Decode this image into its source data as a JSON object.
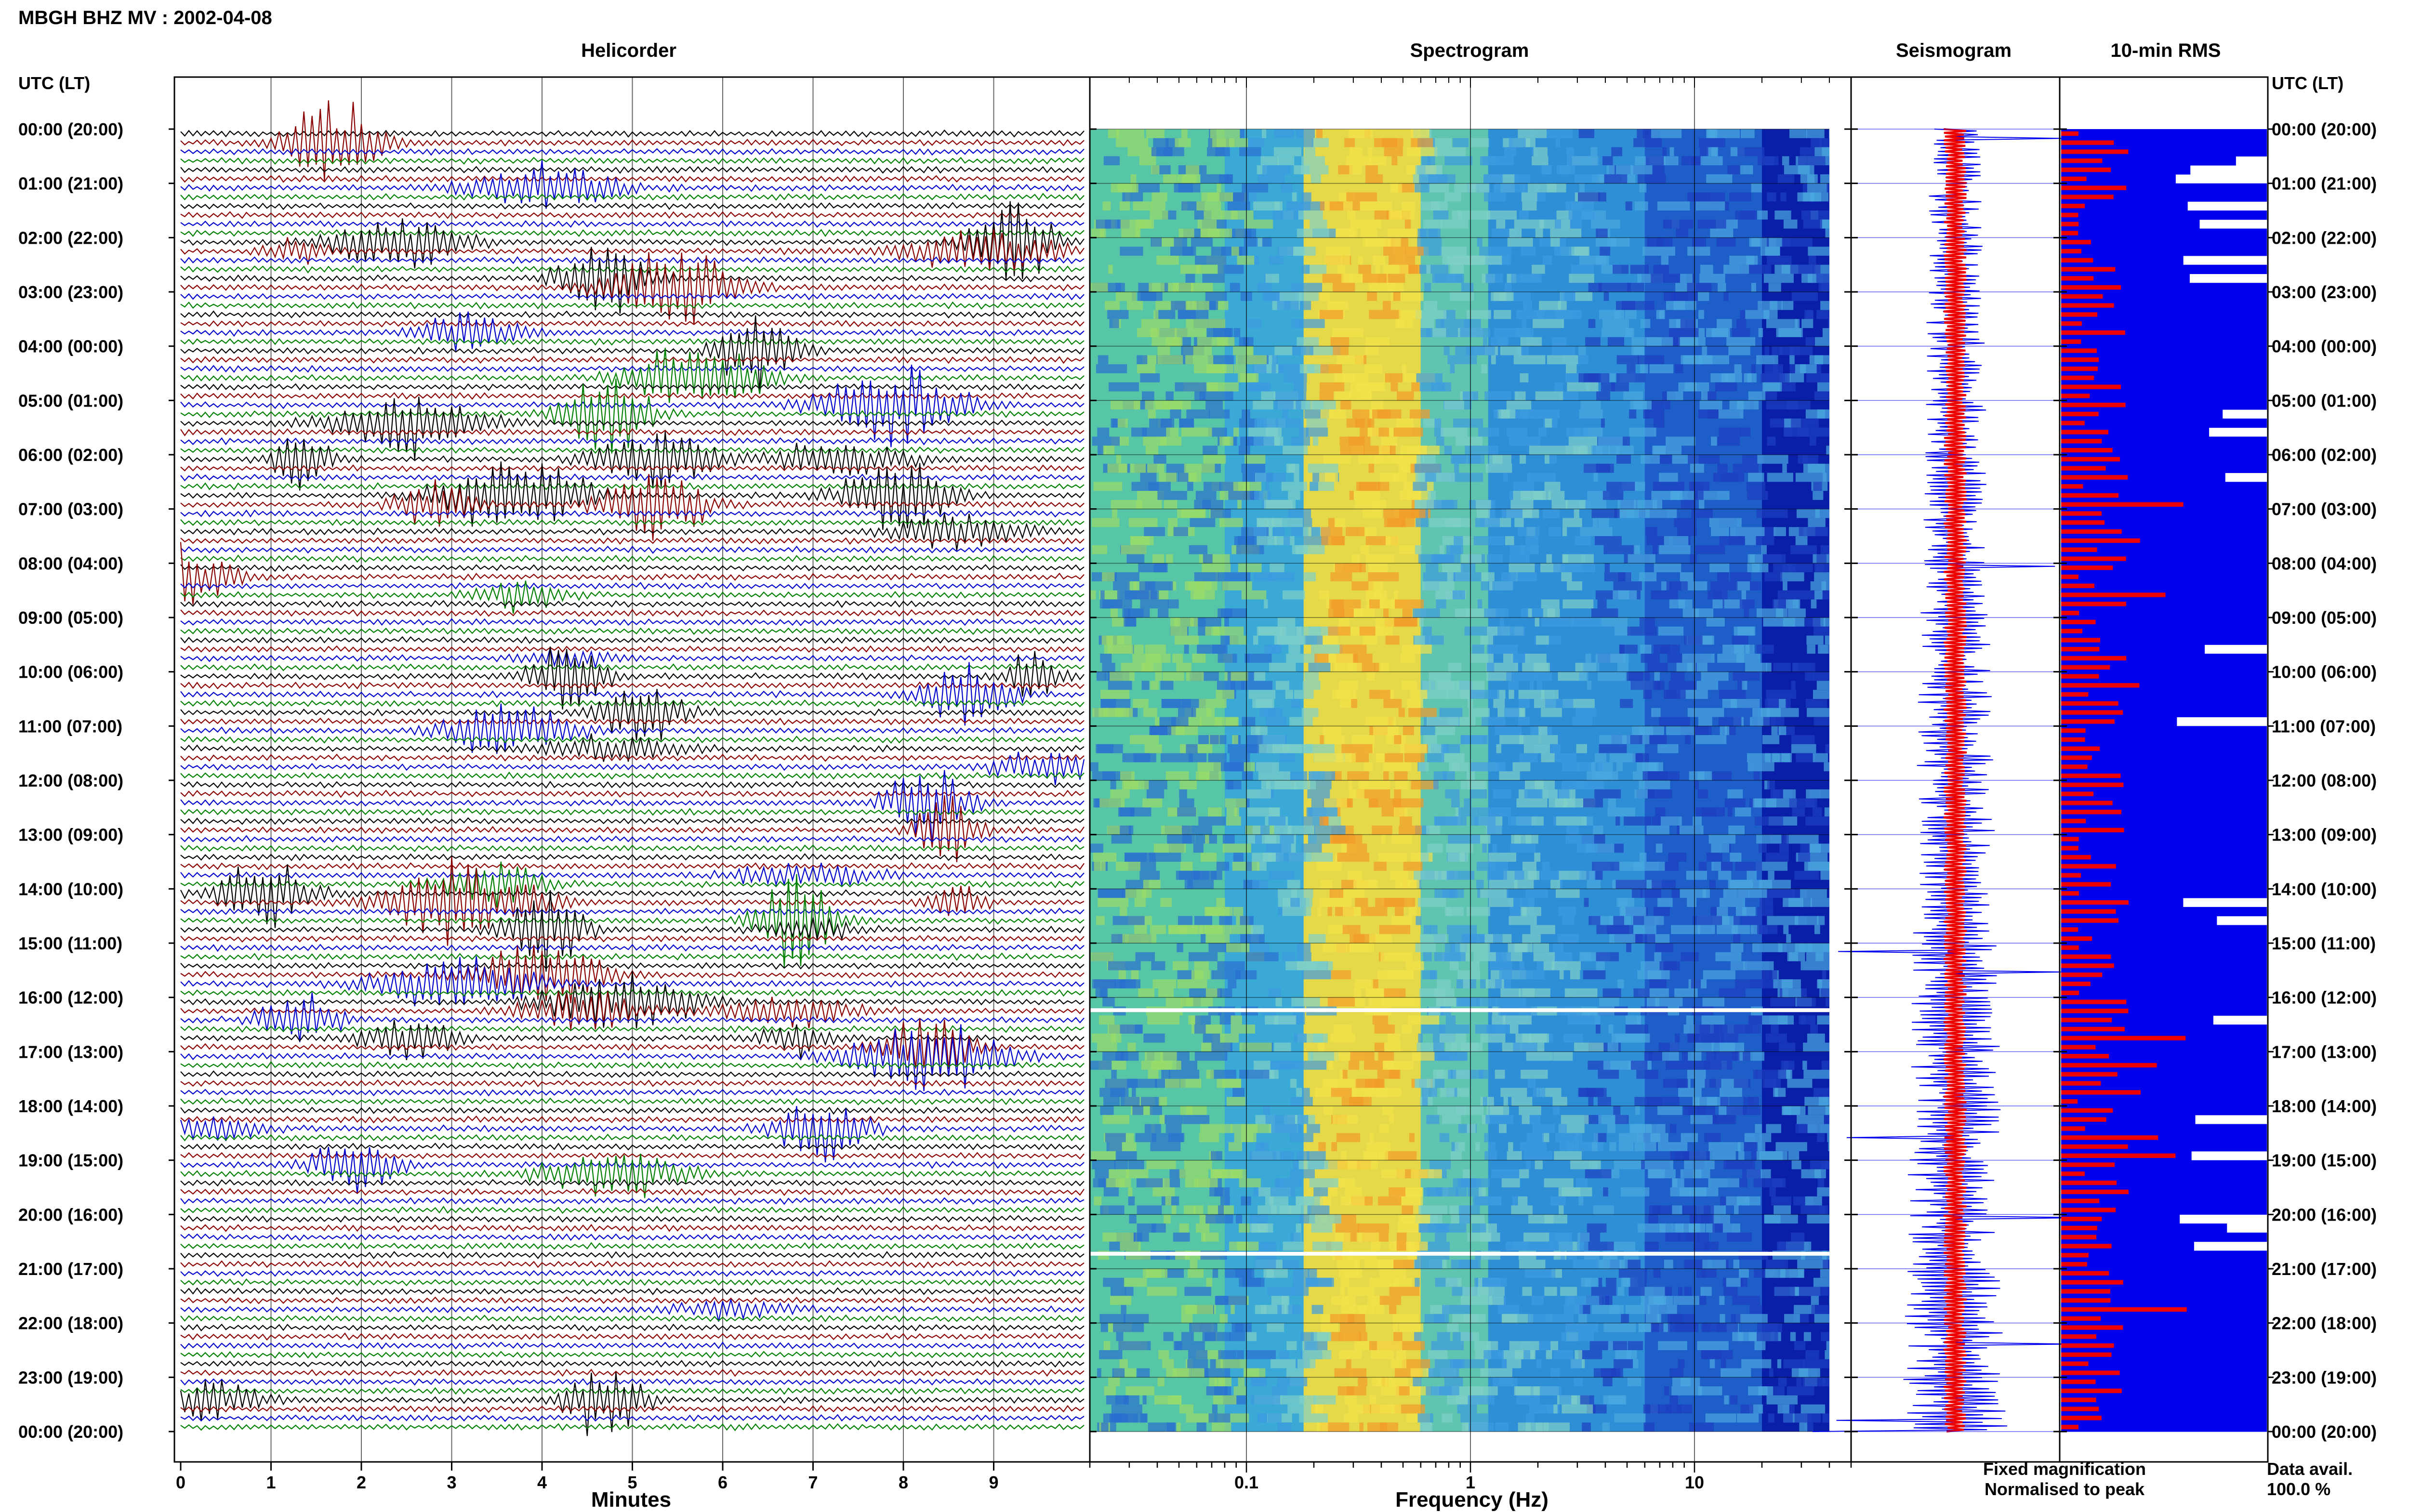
{
  "header": {
    "title": "MBGH BHZ MV : 2002-04-08"
  },
  "panels": {
    "helicorder": "Helicorder",
    "spectrogram": "Spectrogram",
    "seismogram": "Seismogram",
    "rms": "10-min RMS"
  },
  "axes": {
    "left_header": "UTC (LT)",
    "right_header": "UTC (LT)",
    "minutes_label": "Minutes",
    "frequency_label": "Frequency (Hz)",
    "minutes_ticks": [
      "0",
      "1",
      "2",
      "3",
      "4",
      "5",
      "6",
      "7",
      "8",
      "9"
    ],
    "frequency_ticks": [
      "0.1",
      "1",
      "10"
    ]
  },
  "legend": {
    "fixed": "Fixed magnification",
    "normalised": "Normalised to peak",
    "fixed_color": "#0000ee",
    "normalised_color": "#ee0000"
  },
  "data_avail": {
    "label": "Data avail.",
    "value": "100.0 %"
  },
  "chart_data": {
    "type": "heatmap",
    "time_labels": [
      "00:00 (20:00)",
      "01:00 (21:00)",
      "02:00 (22:00)",
      "03:00 (23:00)",
      "04:00 (00:00)",
      "05:00 (01:00)",
      "06:00 (02:00)",
      "07:00 (03:00)",
      "08:00 (04:00)",
      "09:00 (05:00)",
      "10:00 (06:00)",
      "11:00 (07:00)",
      "12:00 (08:00)",
      "13:00 (09:00)",
      "14:00 (10:00)",
      "15:00 (11:00)",
      "16:00 (12:00)",
      "17:00 (13:00)",
      "18:00 (14:00)",
      "19:00 (15:00)",
      "20:00 (16:00)",
      "21:00 (17:00)",
      "22:00 (18:00)",
      "23:00 (19:00)",
      "00:00 (20:00)"
    ],
    "helicorder_minutes_range": [
      0,
      10
    ],
    "helicorder_trace_colors": [
      "#000000",
      "#8b0000",
      "#0000cd",
      "#008000"
    ],
    "spectrogram_freq_range": [
      0.02,
      50
    ],
    "spectrogram_freq_scale": "log",
    "rms_bins": 144,
    "grid": true
  }
}
